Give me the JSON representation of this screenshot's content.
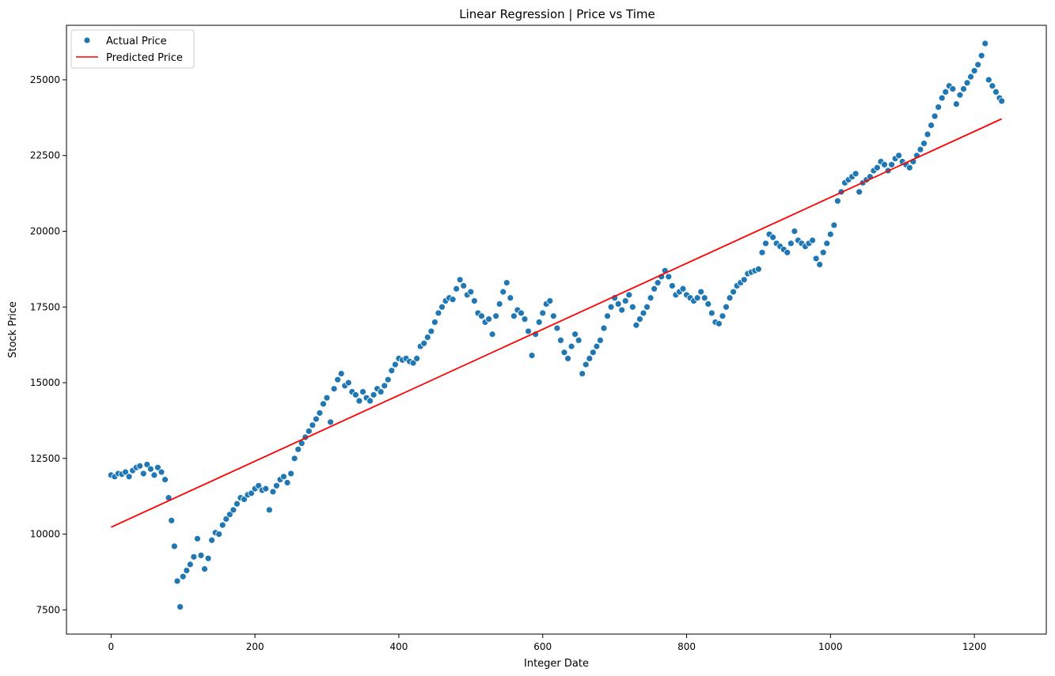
{
  "chart_data": {
    "type": "scatter",
    "title": "Linear Regression | Price vs Time",
    "xlabel": "Integer Date",
    "ylabel": "Stock Price",
    "xlim": [
      -62,
      1300
    ],
    "ylim": [
      6700,
      26800
    ],
    "xticks": [
      0,
      200,
      400,
      600,
      800,
      1000,
      1200
    ],
    "yticks": [
      7500,
      10000,
      12500,
      15000,
      17500,
      20000,
      22500,
      25000
    ],
    "grid": false,
    "legend_position": "top-left",
    "series": [
      {
        "name": "Actual Price",
        "kind": "scatter",
        "color": "#1f77b4",
        "x": [
          0,
          5,
          10,
          15,
          20,
          25,
          30,
          35,
          40,
          45,
          50,
          55,
          60,
          65,
          70,
          75,
          80,
          84,
          88,
          92,
          96,
          100,
          105,
          110,
          115,
          120,
          125,
          130,
          135,
          140,
          145,
          150,
          155,
          160,
          165,
          170,
          175,
          180,
          185,
          190,
          195,
          200,
          205,
          210,
          215,
          220,
          225,
          230,
          235,
          240,
          245,
          250,
          255,
          260,
          265,
          270,
          275,
          280,
          285,
          290,
          295,
          300,
          305,
          310,
          315,
          320,
          325,
          330,
          335,
          340,
          345,
          350,
          355,
          360,
          365,
          370,
          375,
          380,
          385,
          390,
          395,
          400,
          405,
          410,
          415,
          420,
          425,
          430,
          435,
          440,
          445,
          450,
          455,
          460,
          465,
          470,
          475,
          480,
          485,
          490,
          495,
          500,
          505,
          510,
          515,
          520,
          525,
          530,
          535,
          540,
          545,
          550,
          555,
          560,
          565,
          570,
          575,
          580,
          585,
          590,
          595,
          600,
          605,
          610,
          615,
          620,
          625,
          630,
          635,
          640,
          645,
          650,
          655,
          660,
          665,
          670,
          675,
          680,
          685,
          690,
          695,
          700,
          705,
          710,
          715,
          720,
          725,
          730,
          735,
          740,
          745,
          750,
          755,
          760,
          765,
          770,
          775,
          780,
          785,
          790,
          795,
          800,
          805,
          810,
          815,
          820,
          825,
          830,
          835,
          840,
          845,
          850,
          855,
          860,
          865,
          870,
          875,
          880,
          885,
          890,
          895,
          900,
          905,
          910,
          915,
          920,
          925,
          930,
          935,
          940,
          945,
          950,
          955,
          960,
          965,
          970,
          975,
          980,
          985,
          990,
          995,
          1000,
          1005,
          1010,
          1015,
          1020,
          1025,
          1030,
          1035,
          1040,
          1045,
          1050,
          1055,
          1060,
          1065,
          1070,
          1075,
          1080,
          1085,
          1090,
          1095,
          1100,
          1105,
          1110,
          1115,
          1120,
          1125,
          1130,
          1135,
          1140,
          1145,
          1150,
          1155,
          1160,
          1165,
          1170,
          1175,
          1180,
          1185,
          1190,
          1195,
          1200,
          1205,
          1210,
          1215,
          1220,
          1225,
          1230,
          1235,
          1238
        ],
        "y": [
          11950,
          11900,
          12000,
          11980,
          12050,
          11900,
          12100,
          12200,
          12250,
          12000,
          12300,
          12150,
          11950,
          12200,
          12050,
          11800,
          11200,
          10450,
          9600,
          8450,
          7600,
          8600,
          8800,
          9000,
          9250,
          9850,
          9300,
          8850,
          9200,
          9800,
          10050,
          10000,
          10300,
          10500,
          10650,
          10800,
          11000,
          11200,
          11150,
          11300,
          11350,
          11500,
          11600,
          11450,
          11500,
          10800,
          11400,
          11600,
          11800,
          11900,
          11700,
          12000,
          12500,
          12800,
          13000,
          13200,
          13400,
          13600,
          13800,
          14000,
          14300,
          14500,
          13700,
          14800,
          15100,
          15300,
          14900,
          15000,
          14700,
          14600,
          14400,
          14700,
          14500,
          14400,
          14600,
          14800,
          14700,
          14900,
          15100,
          15400,
          15600,
          15800,
          15750,
          15800,
          15700,
          15650,
          15800,
          16200,
          16300,
          16500,
          16700,
          17000,
          17300,
          17500,
          17700,
          17800,
          17750,
          18100,
          18400,
          18200,
          17900,
          18000,
          17700,
          17300,
          17200,
          17000,
          17100,
          16600,
          17200,
          17600,
          18000,
          18300,
          17800,
          17200,
          17400,
          17300,
          17100,
          16700,
          15900,
          16600,
          17000,
          17300,
          17600,
          17700,
          17200,
          16800,
          16400,
          16000,
          15800,
          16200,
          16600,
          16400,
          15300,
          15600,
          15800,
          16000,
          16200,
          16400,
          16800,
          17200,
          17500,
          17800,
          17600,
          17400,
          17700,
          17900,
          17500,
          16900,
          17100,
          17300,
          17500,
          17800,
          18100,
          18300,
          18500,
          18700,
          18500,
          18200,
          17900,
          18000,
          18100,
          17900,
          17800,
          17700,
          17800,
          18000,
          17800,
          17600,
          17300,
          17000,
          16950,
          17200,
          17500,
          17800,
          18000,
          18200,
          18300,
          18400,
          18600,
          18650,
          18700,
          18750,
          19300,
          19600,
          19900,
          19800,
          19600,
          19500,
          19400,
          19300,
          19600,
          20000,
          19700,
          19600,
          19500,
          19600,
          19700,
          19100,
          18900,
          19300,
          19600,
          19900,
          20200,
          21000,
          21300,
          21600,
          21700,
          21800,
          21900,
          21300,
          21600,
          21700,
          21800,
          22000,
          22100,
          22300,
          22200,
          22000,
          22200,
          22400,
          22500,
          22300,
          22200,
          22100,
          22300,
          22500,
          22700,
          22900,
          23200,
          23500,
          23800,
          24100,
          24400,
          24600,
          24800,
          24700,
          24200,
          24500,
          24700,
          24900,
          25100,
          25300,
          25500,
          25800,
          26200,
          25000,
          24800,
          24600,
          24400,
          24300
        ]
      },
      {
        "name": "Predicted Price",
        "kind": "line",
        "color": "#ff0000",
        "x": [
          0,
          1238
        ],
        "y": [
          10230,
          23710
        ]
      }
    ]
  }
}
